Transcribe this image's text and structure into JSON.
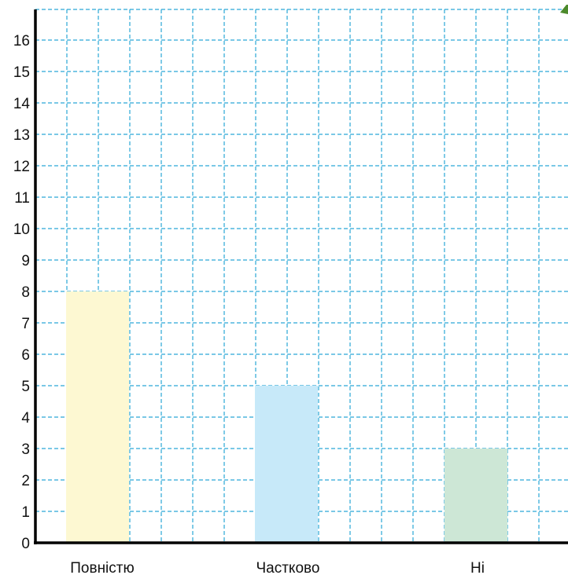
{
  "chart_data": {
    "type": "bar",
    "categories": [
      "Повністю",
      "Частково",
      "Ні"
    ],
    "values": [
      8,
      5,
      3
    ],
    "colors": [
      "#fdf8d2",
      "#c7e9f9",
      "#cde7d6"
    ],
    "yticks": [
      "0",
      "1",
      "2",
      "3",
      "4",
      "5",
      "6",
      "7",
      "8",
      "9",
      "10",
      "11",
      "12",
      "13",
      "14",
      "15",
      "16"
    ],
    "ylim": [
      0,
      17
    ],
    "grid": true,
    "grid_color": "#2aa7d6",
    "axis_color": "#000000",
    "corner_mark_color": "#4c8a2b"
  }
}
